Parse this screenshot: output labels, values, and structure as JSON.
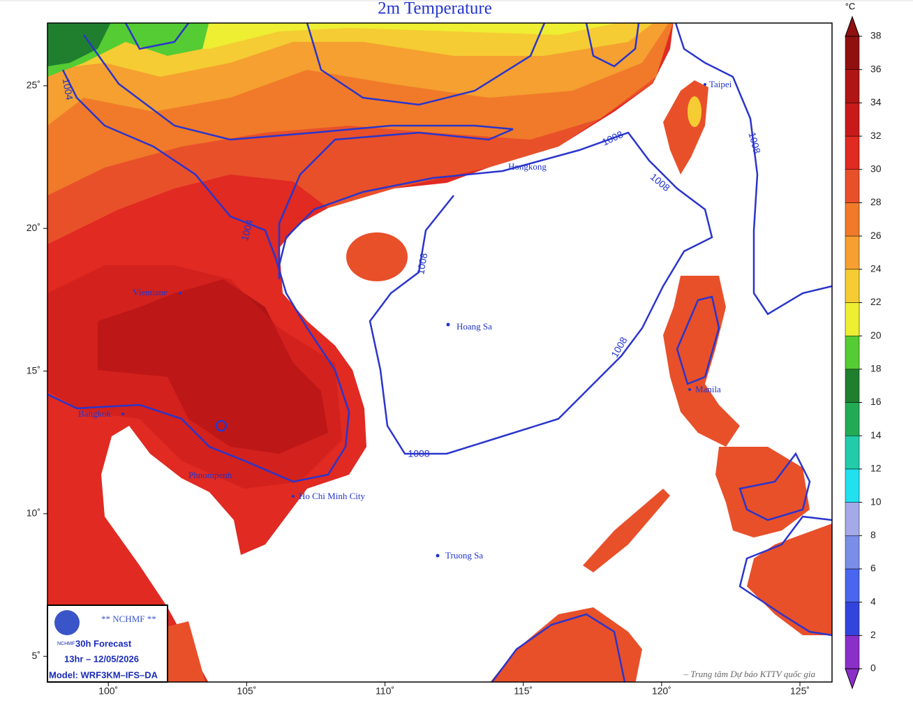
{
  "title": "2m Temperature",
  "unit": "°C",
  "map": {
    "xlim": [
      97.8,
      126.16
    ],
    "ylim": [
      4.1,
      27.2
    ],
    "xticks": [
      {
        "value": 100,
        "label": "100˚"
      },
      {
        "value": 105,
        "label": "105˚"
      },
      {
        "value": 110,
        "label": "110˚"
      },
      {
        "value": 115,
        "label": "115˚"
      },
      {
        "value": 120,
        "label": "120˚"
      },
      {
        "value": 125,
        "label": "125˚"
      }
    ],
    "yticks": [
      {
        "value": 5,
        "label": "5˚"
      },
      {
        "value": 10,
        "label": "10˚"
      },
      {
        "value": 15,
        "label": "15˚"
      },
      {
        "value": 20,
        "label": "20˚"
      },
      {
        "value": 25,
        "label": "25˚"
      }
    ]
  },
  "colorbar": {
    "lim": [
      0,
      38
    ],
    "ticks": [
      0,
      2,
      4,
      6,
      8,
      10,
      12,
      14,
      16,
      18,
      20,
      22,
      24,
      26,
      28,
      30,
      32,
      34,
      36,
      38
    ],
    "colors": [
      "#8b2fc9",
      "#3344dd",
      "#4a66ee",
      "#7a8ee8",
      "#a4aae8",
      "#22e0f0",
      "#22ccaa",
      "#22aa55",
      "#1f7f2f",
      "#55cc33",
      "#eeee33",
      "#f5cc33",
      "#f5a030",
      "#f07a2a",
      "#e8502a",
      "#e02a22",
      "#c81a1a",
      "#b01515",
      "#901010"
    ]
  },
  "cities": [
    "Taipei",
    "Hongkong",
    "Vientiane",
    "Hoang Sa",
    "Manila",
    "Bangkok",
    "Phnompenh",
    "Ho Chi Minh City",
    "Truong Sa"
  ],
  "contour_labels": [
    "1004",
    "1004",
    "1008",
    "1008",
    "1008",
    "1008",
    "1008",
    "1008"
  ],
  "info": {
    "org": "** NCHMF **",
    "logo": "NCHMF",
    "forecast": "30h Forecast",
    "time": "13hr – 12/05/2026",
    "model": "Model: WRF3KM–IFS–DA"
  },
  "attribution": "– Trung tâm Dự báo KTTV quốc gia"
}
